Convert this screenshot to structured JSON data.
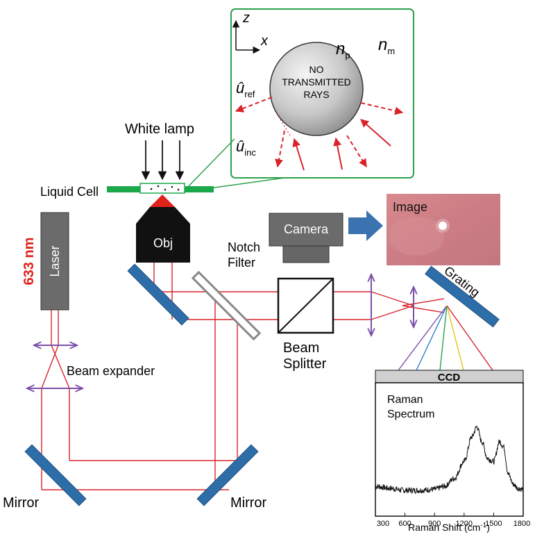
{
  "labels": {
    "white_lamp": "White lamp",
    "liquid_cell": "Liquid Cell",
    "laser": "Laser",
    "wavelength": "633 nm",
    "objective": "Obj",
    "camera": "Camera",
    "image": "Image",
    "notch_filter_line1": "Notch",
    "notch_filter_line2": "Filter",
    "beam_splitter_line1": "Beam",
    "beam_splitter_line2": "Splitter",
    "beam_expander": "Beam expander",
    "grating": "Grating",
    "ccd": "CCD",
    "mirror_left": "Mirror",
    "mirror_right": "Mirror"
  },
  "inset": {
    "axis_z": "z",
    "axis_x": "x",
    "n_p": "n",
    "n_p_sub": "p",
    "n_m": "n",
    "n_m_sub": "m",
    "u_ref": "û",
    "u_ref_sub": "ref",
    "u_inc": "û",
    "u_inc_sub": "inc",
    "sphere_line1": "NO",
    "sphere_line2": "TRANSMITTED",
    "sphere_line3": "RAYS"
  },
  "spectrum": {
    "title_line1": "Raman",
    "title_line2": "Spectrum",
    "xlabel": "Raman Shift (cm",
    "xlabel_sup": "-1",
    "xlabel_end": ")",
    "xticks": [
      "300",
      "600",
      "900",
      "1200",
      "1500",
      "1800"
    ]
  },
  "chart_data": {
    "type": "line",
    "x": [
      300,
      450,
      600,
      750,
      900,
      1000,
      1100,
      1200,
      1280,
      1330,
      1380,
      1440,
      1500,
      1560,
      1600,
      1650,
      1700,
      1750,
      1800
    ],
    "y": [
      0.3,
      0.28,
      0.26,
      0.26,
      0.27,
      0.3,
      0.38,
      0.55,
      0.8,
      0.9,
      0.75,
      0.58,
      0.55,
      0.75,
      0.7,
      0.42,
      0.32,
      0.28,
      0.27
    ],
    "xlim": [
      300,
      1800
    ],
    "ylim": [
      0,
      1
    ]
  },
  "colors": {
    "beam": "#d8232a",
    "mirror": "#2e6ea8",
    "lens": "#7b4fa8",
    "inset_border": "#2ca04a",
    "cell": "#1aa84a",
    "camera_arrow": "#3b73b0",
    "spectral_lines": [
      "#7b4fa8",
      "#2f7fd0",
      "#22a54a",
      "#e9c21e",
      "#d8232a"
    ]
  }
}
